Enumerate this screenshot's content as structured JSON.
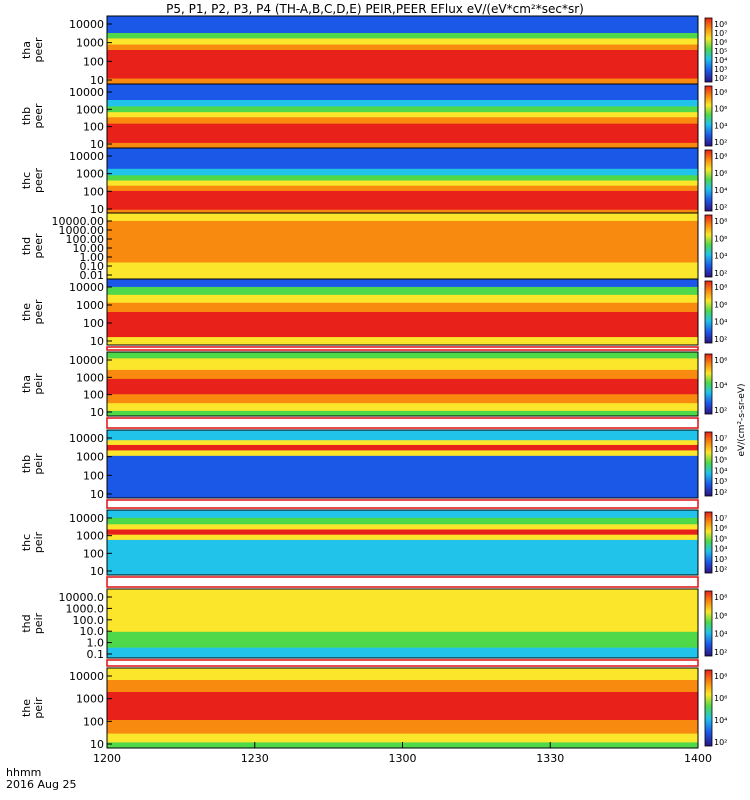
{
  "title": "P5, P1, P2, P3, P4 (TH-A,B,C,D,E) PEIR,PEER EFlux eV/(eV*cm²*sec*sr)",
  "colorbar_title": "eV/(cm²-s-sr-eV)",
  "xaxis": {
    "label_top": "hhmm",
    "label_bottom": "2016 Aug 25",
    "ticks": [
      "1200",
      "1230",
      "1300",
      "1330",
      "1400"
    ]
  },
  "colors": {
    "red": "#e8221a",
    "orange": "#f98a10",
    "yellow": "#fbe62b",
    "green": "#4fd94a",
    "cyan": "#21c3ea",
    "blue": "#1c58e8",
    "navy": "#2a1380"
  },
  "chart_data": {
    "type": "heatmap",
    "x_range": [
      "12:00",
      "14:00"
    ],
    "yscale": "log",
    "panels": [
      {
        "id": "tha-peer",
        "label": [
          "tha",
          "peer"
        ],
        "y_ticks": [
          "10000",
          "1000",
          "100",
          "10"
        ],
        "cb_ticks": [
          "10⁸",
          "10⁷",
          "10⁶",
          "10⁵",
          "10⁴",
          "10³",
          "10²"
        ]
      },
      {
        "id": "thb-peer",
        "label": [
          "thb",
          "peer"
        ],
        "y_ticks": [
          "10000",
          "1000",
          "100",
          "10"
        ],
        "cb_ticks": [
          "10⁸",
          "10⁶",
          "10⁴",
          "10²"
        ]
      },
      {
        "id": "thc-peer",
        "label": [
          "thc",
          "peer"
        ],
        "y_ticks": [
          "10000",
          "1000",
          "100",
          "10"
        ],
        "cb_ticks": [
          "10⁸",
          "10⁶",
          "10⁴",
          "10²"
        ]
      },
      {
        "id": "thd-peer",
        "label": [
          "thd",
          "peer"
        ],
        "y_ticks": [
          "10000.00",
          "1000.00",
          "100.00",
          "10.00",
          "1.00",
          "0.10",
          "0.01"
        ],
        "cb_ticks": [
          "10⁸",
          "10⁶",
          "10⁴",
          "10²"
        ]
      },
      {
        "id": "the-peer",
        "label": [
          "the",
          "peer"
        ],
        "y_ticks": [
          "10000",
          "1000",
          "100",
          "10"
        ],
        "cb_ticks": [
          "10⁸",
          "10⁶",
          "10⁴",
          "10²"
        ]
      },
      {
        "id": "tha-peir",
        "label": [
          "tha",
          "peir"
        ],
        "y_ticks": [
          "10000",
          "1000",
          "100",
          "10"
        ],
        "cb_ticks": [
          "10⁶",
          "10⁴",
          "10²"
        ]
      },
      {
        "id": "thb-peir",
        "label": [
          "thb",
          "peir"
        ],
        "y_ticks": [
          "10000",
          "1000",
          "100",
          "10"
        ],
        "cb_ticks": [
          "10⁷",
          "10⁶",
          "10⁵",
          "10⁴",
          "10³",
          "10²"
        ]
      },
      {
        "id": "thc-peir",
        "label": [
          "thc",
          "peir"
        ],
        "y_ticks": [
          "10000",
          "1000",
          "100",
          "10"
        ],
        "cb_ticks": [
          "10⁷",
          "10⁶",
          "10⁵",
          "10⁴",
          "10³",
          "10²"
        ]
      },
      {
        "id": "thd-peir",
        "label": [
          "thd",
          "peir"
        ],
        "y_ticks": [
          "10000.0",
          "1000.0",
          "100.0",
          "10.0",
          "1.0",
          "0.1"
        ],
        "cb_ticks": [
          "10⁸",
          "10⁶",
          "10⁴",
          "10²"
        ]
      },
      {
        "id": "the-peir",
        "label": [
          "the",
          "peir"
        ],
        "y_ticks": [
          "10000",
          "1000",
          "100",
          "10"
        ],
        "cb_ticks": [
          "10⁸",
          "10⁶",
          "10⁴",
          "10²"
        ]
      }
    ]
  }
}
